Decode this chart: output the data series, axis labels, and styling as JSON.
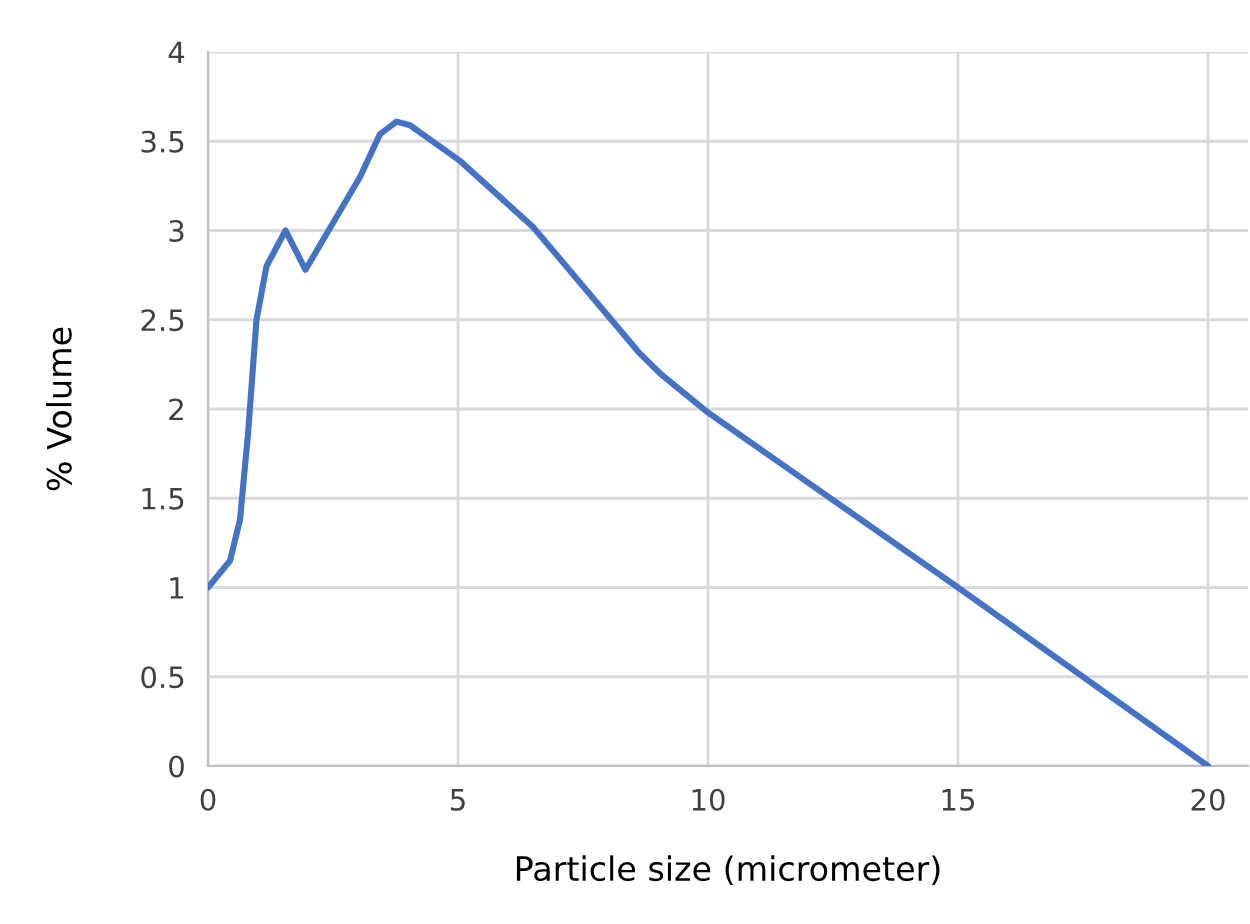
{
  "chart_data": {
    "type": "line",
    "xlabel": "Particle size (micrometer)",
    "ylabel": "% Volume",
    "x": [
      0,
      0.44,
      0.64,
      0.8,
      0.97,
      1.17,
      1.55,
      1.95,
      2.37,
      3.04,
      3.44,
      3.77,
      4.04,
      5.04,
      6.5,
      8.64,
      9.04,
      10.0,
      15.0,
      20.0
    ],
    "series": [
      {
        "color": "#4472c4",
        "values": [
          1.0,
          1.15,
          1.38,
          1.86,
          2.5,
          2.8,
          3.0,
          2.78,
          2.98,
          3.3,
          3.54,
          3.61,
          3.59,
          3.39,
          3.02,
          2.31,
          2.2,
          1.98,
          1.0,
          0.0
        ]
      }
    ],
    "xlim": [
      0,
      20.8
    ],
    "ylim": [
      0,
      4
    ],
    "xticks": [
      0,
      5,
      10,
      15,
      20
    ],
    "yticks": [
      0,
      0.5,
      1,
      1.5,
      2,
      2.5,
      3,
      3.5,
      4
    ],
    "grid": true,
    "legend": false,
    "marker": "none",
    "line_style": "solid"
  }
}
